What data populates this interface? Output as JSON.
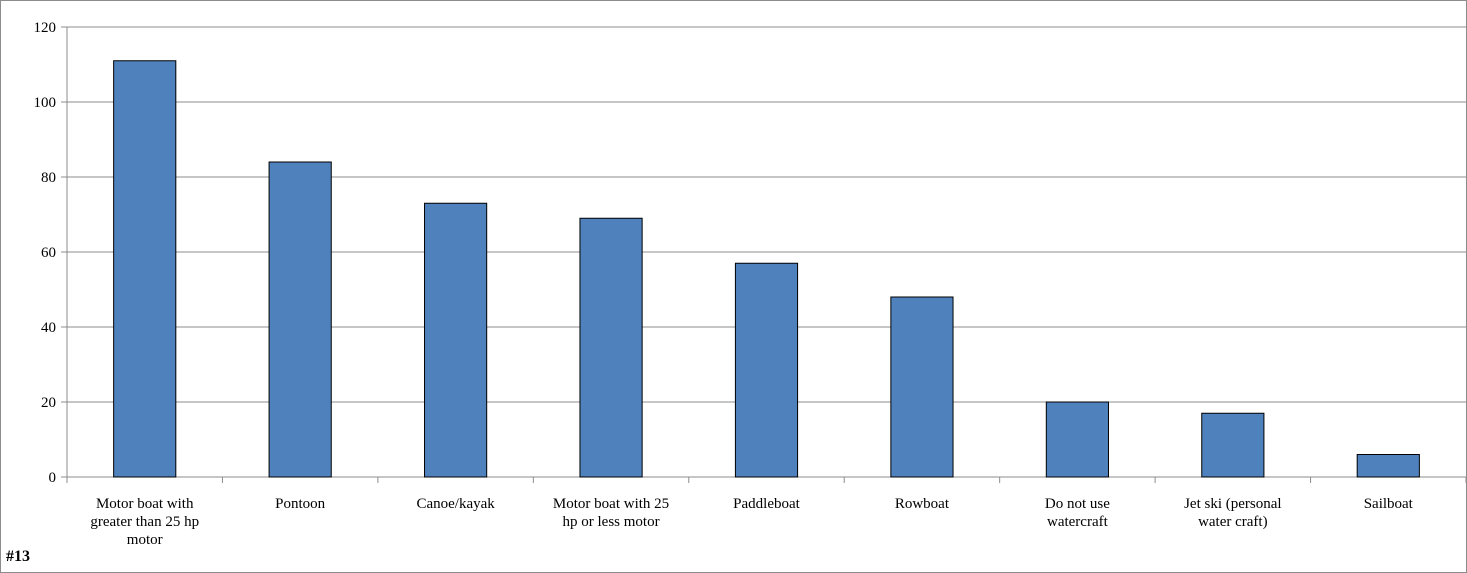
{
  "figure_tag": "#13",
  "colors": {
    "bar_fill": "#4f81bd",
    "bar_stroke": "#000000",
    "gridline": "#8c8c8c",
    "axis": "#8c8c8c"
  },
  "chart_data": {
    "type": "bar",
    "title": "",
    "xlabel": "",
    "ylabel": "",
    "categories": [
      [
        "Motor boat with",
        "greater than 25 hp",
        "motor"
      ],
      [
        "Pontoon"
      ],
      [
        "Canoe/kayak"
      ],
      [
        "Motor boat with 25",
        "hp or less motor"
      ],
      [
        "Paddleboat"
      ],
      [
        "Rowboat"
      ],
      [
        "Do not use",
        "watercraft"
      ],
      [
        "Jet ski (personal",
        "water craft)"
      ],
      [
        "Sailboat"
      ]
    ],
    "values": [
      111,
      84,
      73,
      69,
      57,
      48,
      20,
      17,
      6
    ],
    "ylim": [
      0,
      120
    ],
    "yticks": [
      0,
      20,
      40,
      60,
      80,
      100,
      120
    ],
    "grid": true,
    "legend": "none"
  }
}
